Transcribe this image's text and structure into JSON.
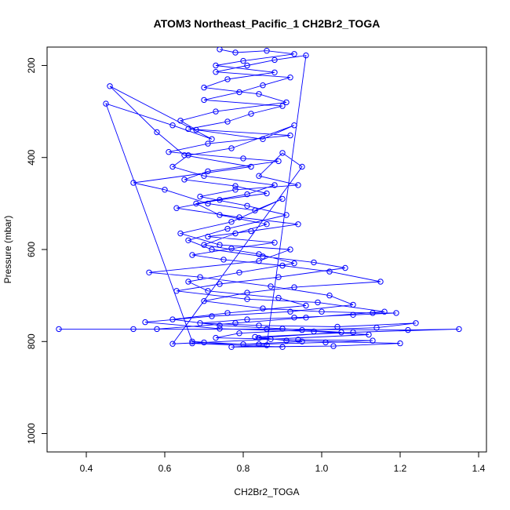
{
  "chart_data": {
    "type": "scatter",
    "title": "ATOM3 Northeast_Pacific_1 CH2Br2_TOGA",
    "xlabel": "CH2Br2_TOGA",
    "ylabel": "Pressure (mbar)",
    "xlim": [
      0.3,
      1.42
    ],
    "ylim": [
      1040,
      160
    ],
    "y_reversed": true,
    "x_ticks": [
      0.4,
      0.6,
      0.8,
      1.0,
      1.2,
      1.4
    ],
    "x_tick_labels": [
      "0.4",
      "0.6",
      "0.8",
      "1.0",
      "1.2",
      "1.4"
    ],
    "y_ticks": [
      200,
      400,
      600,
      800,
      1000
    ],
    "y_tick_labels": [
      "200",
      "400",
      "600",
      "800",
      "1000"
    ],
    "grid": false,
    "legend": "none",
    "series": [
      {
        "color": "#0000ff",
        "marker": "open-circle",
        "connected": true,
        "points": [
          [
            0.74,
            165
          ],
          [
            0.78,
            172
          ],
          [
            0.86,
            168
          ],
          [
            0.93,
            175
          ],
          [
            0.8,
            190
          ],
          [
            0.73,
            200
          ],
          [
            0.88,
            215
          ],
          [
            0.76,
            230
          ],
          [
            0.7,
            248
          ],
          [
            0.84,
            262
          ],
          [
            0.91,
            280
          ],
          [
            0.73,
            300
          ],
          [
            0.64,
            320
          ],
          [
            0.68,
            340
          ],
          [
            0.85,
            360
          ],
          [
            0.93,
            330
          ],
          [
            0.77,
            380
          ],
          [
            0.66,
            395
          ],
          [
            0.62,
            420
          ],
          [
            0.7,
            440
          ],
          [
            0.88,
            460
          ],
          [
            0.81,
            480
          ],
          [
            0.68,
            500
          ],
          [
            0.74,
            525
          ],
          [
            0.86,
            545
          ],
          [
            0.78,
            565
          ],
          [
            0.7,
            590
          ],
          [
            0.84,
            610
          ],
          [
            0.93,
            630
          ],
          [
            0.79,
            650
          ],
          [
            0.66,
            670
          ],
          [
            0.71,
            690
          ],
          [
            0.89,
            705
          ],
          [
            0.96,
            722
          ],
          [
            0.76,
            738
          ],
          [
            0.62,
            752
          ],
          [
            0.74,
            765
          ],
          [
            0.9,
            772
          ],
          [
            1.05,
            780
          ],
          [
            0.84,
            792
          ],
          [
            0.95,
            800
          ],
          [
            0.8,
            806
          ],
          [
            0.67,
            800
          ],
          [
            0.45,
            283
          ],
          [
            0.62,
            330
          ],
          [
            0.72,
            360
          ],
          [
            0.46,
            245
          ],
          [
            0.58,
            345
          ],
          [
            0.65,
            395
          ],
          [
            0.82,
            420
          ],
          [
            0.52,
            455
          ],
          [
            0.6,
            470
          ],
          [
            0.71,
            500
          ],
          [
            0.83,
            515
          ],
          [
            0.9,
            490
          ],
          [
            0.77,
            540
          ],
          [
            0.64,
            565
          ],
          [
            0.74,
            590
          ],
          [
            0.92,
            600
          ],
          [
            0.84,
            625
          ],
          [
            0.56,
            650
          ],
          [
            0.69,
            660
          ],
          [
            0.87,
            680
          ],
          [
            1.02,
            700
          ],
          [
            1.08,
            720
          ],
          [
            0.92,
            735
          ],
          [
            0.72,
            745
          ],
          [
            0.55,
            758
          ],
          [
            0.74,
            772
          ],
          [
            0.98,
            778
          ],
          [
            1.12,
            785
          ],
          [
            0.87,
            795
          ],
          [
            0.7,
            802
          ],
          [
            0.62,
            805
          ],
          [
            0.95,
            420
          ],
          [
            0.9,
            390
          ],
          [
            0.84,
            440
          ],
          [
            0.94,
            460
          ],
          [
            0.78,
            470
          ],
          [
            0.69,
            485
          ],
          [
            0.81,
            505
          ],
          [
            0.91,
            525
          ],
          [
            0.76,
            555
          ],
          [
            0.66,
            580
          ],
          [
            0.72,
            600
          ],
          [
            0.85,
            615
          ],
          [
            0.98,
            628
          ],
          [
            1.06,
            640
          ],
          [
            0.89,
            660
          ],
          [
            0.74,
            675
          ],
          [
            0.63,
            690
          ],
          [
            0.81,
            708
          ],
          [
            0.99,
            715
          ],
          [
            1.16,
            735
          ],
          [
            0.96,
            748
          ],
          [
            0.78,
            760
          ],
          [
            0.58,
            773
          ],
          [
            0.33,
            773
          ],
          [
            0.52,
            773
          ],
          [
            0.86,
            773
          ],
          [
            1.22,
            775
          ],
          [
            1.35,
            773
          ],
          [
            1.08,
            780
          ],
          [
            0.83,
            790
          ],
          [
            0.91,
            798
          ],
          [
            1.2,
            804
          ],
          [
            1.03,
            810
          ],
          [
            0.77,
            812
          ],
          [
            0.86,
            808
          ],
          [
            0.96,
            178
          ],
          [
            0.88,
            188
          ],
          [
            0.81,
            200
          ],
          [
            0.73,
            214
          ],
          [
            0.92,
            226
          ],
          [
            0.85,
            243
          ],
          [
            0.79,
            258
          ],
          [
            0.7,
            275
          ],
          [
            0.9,
            288
          ],
          [
            0.82,
            305
          ],
          [
            0.76,
            322
          ],
          [
            0.66,
            338
          ],
          [
            0.92,
            352
          ],
          [
            0.71,
            370
          ],
          [
            0.61,
            388
          ],
          [
            0.8,
            402
          ],
          [
            0.89,
            408
          ],
          [
            0.71,
            430
          ],
          [
            0.65,
            448
          ],
          [
            0.78,
            462
          ],
          [
            0.86,
            478
          ],
          [
            0.74,
            492
          ],
          [
            0.63,
            510
          ],
          [
            0.79,
            530
          ],
          [
            0.94,
            545
          ],
          [
            0.82,
            560
          ],
          [
            0.71,
            572
          ],
          [
            0.88,
            585
          ],
          [
            0.77,
            598
          ],
          [
            0.67,
            612
          ],
          [
            0.75,
            622
          ],
          [
            0.9,
            635
          ],
          [
            1.02,
            648
          ],
          [
            1.15,
            670
          ],
          [
            0.93,
            682
          ],
          [
            0.81,
            694
          ],
          [
            0.7,
            712
          ],
          [
            0.85,
            728
          ],
          [
            1.0,
            735
          ],
          [
            1.13,
            738
          ],
          [
            1.19,
            738
          ],
          [
            1.08,
            742
          ],
          [
            0.93,
            748
          ],
          [
            0.81,
            752
          ],
          [
            0.69,
            760
          ],
          [
            0.84,
            765
          ],
          [
            1.04,
            768
          ],
          [
            1.24,
            760
          ],
          [
            1.14,
            770
          ],
          [
            0.95,
            775
          ],
          [
            0.79,
            782
          ],
          [
            0.73,
            792
          ],
          [
            0.94,
            796
          ],
          [
            1.13,
            798
          ],
          [
            1.01,
            802
          ],
          [
            0.84,
            806
          ],
          [
            0.67,
            804
          ],
          [
            0.9,
            812
          ]
        ]
      }
    ]
  }
}
